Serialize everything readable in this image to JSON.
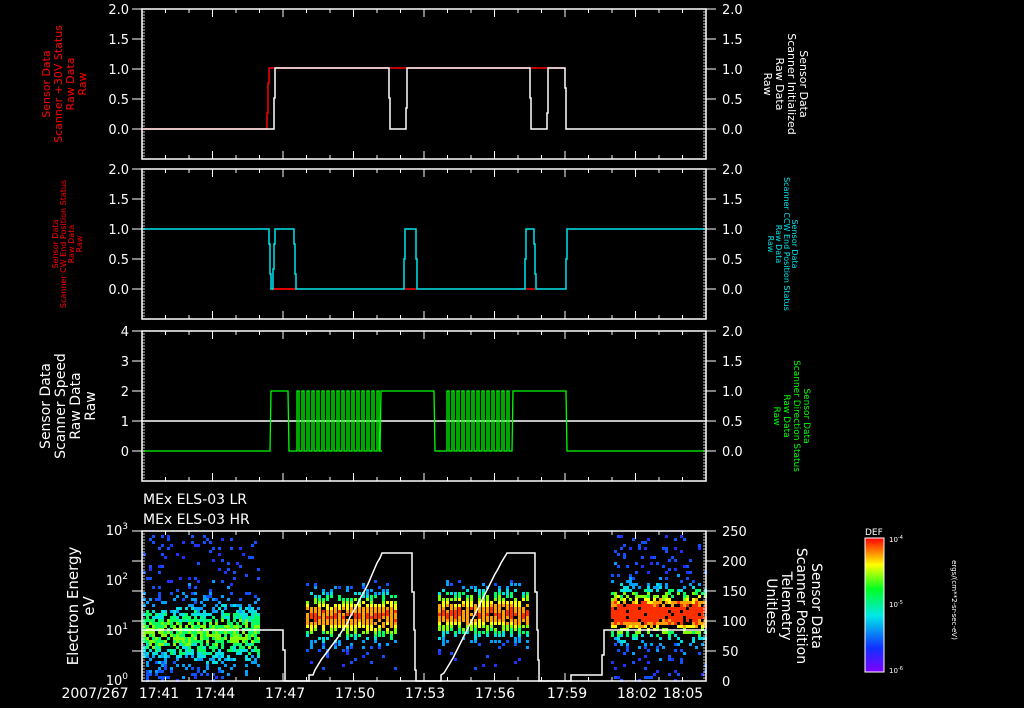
{
  "chart_data": [
    {
      "type": "line",
      "panel": 1,
      "title": "",
      "ylabel_left": [
        "Sensor Data",
        "Scanner +30V Status",
        "Raw Data",
        "Raw"
      ],
      "ylabel_left_color": "#ff0000",
      "ylabel_right": [
        "Sensor Data",
        "Scanner Initialized",
        "Raw Data",
        "Raw"
      ],
      "ylabel_right_color": "#ffffff",
      "yticks_left": [
        "2.0",
        "1.5",
        "1.0",
        "0.5",
        "0.0"
      ],
      "yticks_right": [
        "2.0",
        "1.5",
        "1.0",
        "0.5",
        "0.0"
      ],
      "ylim": [
        -0.5,
        2.0
      ],
      "series": [
        {
          "name": "Scanner +30V Status",
          "color": "#ff0000",
          "x": [
            "17:41",
            "17:47",
            "17:47",
            "17:53",
            "17:53",
            "17:54",
            "17:54",
            "17:59",
            "17:59",
            "18:00",
            "18:00",
            "18:05"
          ],
          "values": [
            0,
            0,
            1,
            1,
            1,
            1,
            1,
            1,
            1,
            1,
            1,
            1
          ]
        },
        {
          "name": "Scanner Initialized",
          "color": "#ffffff",
          "x": [
            "17:41",
            "17:47",
            "17:47",
            "17:53",
            "17:53",
            "17:54",
            "17:54",
            "17:59",
            "17:59",
            "18:00",
            "18:00",
            "18:01",
            "18:01",
            "18:05"
          ],
          "values": [
            0,
            0,
            1,
            1,
            0,
            0,
            1,
            1,
            0,
            0,
            1,
            1,
            0,
            0
          ]
        }
      ]
    },
    {
      "type": "line",
      "panel": 2,
      "ylabel_left": [
        "Sensor Data",
        "Scanner CW End Position Status",
        "Raw Data",
        "Raw"
      ],
      "ylabel_left_color": "#ff0000",
      "ylabel_right": [
        "Sensor Data",
        "Scanner CCW End Position Status",
        "Raw Data",
        "Raw"
      ],
      "ylabel_right_color": "#00e5ee",
      "yticks_left": [
        "2.0",
        "1.5",
        "1.0",
        "0.5",
        "0.0"
      ],
      "yticks_right": [
        "2.0",
        "1.5",
        "1.0",
        "0.5",
        "0.0"
      ],
      "ylim": [
        -0.5,
        2.0
      ],
      "series": [
        {
          "name": "Scanner CW End Position Status",
          "color": "#ff0000",
          "values_note": "0 during scanner moving intervals"
        },
        {
          "name": "Scanner CCW End Position Status",
          "color": "#00e5ee",
          "x": [
            "17:41",
            "17:47",
            "17:47",
            "17:48",
            "17:48",
            "17:54",
            "17:54",
            "17:54",
            "17:54",
            "17:59",
            "17:59",
            "17:59",
            "17:59",
            "18:01",
            "18:01",
            "18:05"
          ],
          "values": [
            1,
            1,
            0,
            1,
            0,
            0,
            1,
            1,
            0,
            0,
            1,
            1,
            0,
            0,
            1,
            1
          ]
        }
      ]
    },
    {
      "type": "line",
      "panel": 3,
      "ylabel_left": [
        "Sensor Data",
        "Scanner Speed",
        "Raw Data",
        "Raw"
      ],
      "ylabel_left_color": "#ffffff",
      "ylabel_right": [
        "Sensor Data",
        "Scanner Direction Status",
        "Raw Data",
        "Raw"
      ],
      "ylabel_right_color": "#00ff00",
      "yticks_left": [
        "4",
        "3",
        "2",
        "1",
        "0"
      ],
      "yticks_right": [
        "2.0",
        "1.5",
        "1.0",
        "0.5",
        "0.0"
      ],
      "ylim_left": [
        -1,
        4
      ],
      "ylim_right": [
        -0.5,
        2.0
      ],
      "series": [
        {
          "name": "Scanner Speed",
          "color": "#ffffff",
          "constant": 1
        },
        {
          "name": "Scanner Direction Status",
          "color": "#00ff00",
          "values_note": "0 baseline, 1 during scan, rapid 0/1 toggling 17:48-17:52 and 17:54-17:57"
        }
      ]
    },
    {
      "type": "heatmap",
      "panel": 4,
      "labels": [
        "MEx ELS-03 LR",
        "MEx ELS-03 HR"
      ],
      "ylabel_left": [
        "Electron Energy",
        "eV"
      ],
      "ylabel_right": [
        "Sensor Data",
        "Scanner Position",
        "Telemetry",
        "Unitless"
      ],
      "yticks_left": [
        "10^3",
        "10^2",
        "10^1",
        "10^0"
      ],
      "yticks_right": [
        "250",
        "200",
        "150",
        "100",
        "50",
        "0"
      ],
      "ylim_left": [
        1,
        1000
      ],
      "ylim_right": [
        0,
        250
      ],
      "colorbar": {
        "title": "DEF",
        "ticks": [
          "10^-4",
          "10^-5",
          "10^-6"
        ],
        "label": "ergs/(cm**2-sr-sec-eV)"
      },
      "series": [
        {
          "name": "Scanner Position",
          "color": "#ffffff",
          "x": [
            "17:41",
            "17:47",
            "17:48",
            "17:51",
            "17:52",
            "17:53",
            "17:54",
            "17:57",
            "17:58",
            "17:59",
            "18:00",
            "18:01",
            "18:05"
          ],
          "values": [
            100,
            100,
            0,
            220,
            220,
            0,
            0,
            220,
            220,
            0,
            20,
            100,
            100
          ]
        }
      ]
    }
  ],
  "xaxis": {
    "date_prefix": "2007/267",
    "ticks": [
      "17:41",
      "17:44",
      "17:47",
      "17:50",
      "17:53",
      "17:56",
      "17:59",
      "18:02",
      "18:05"
    ]
  },
  "colors": {
    "cw": "#ff0000",
    "ccw": "#00e5ee",
    "direction": "#00ff00",
    "axes": "#ffffff"
  }
}
